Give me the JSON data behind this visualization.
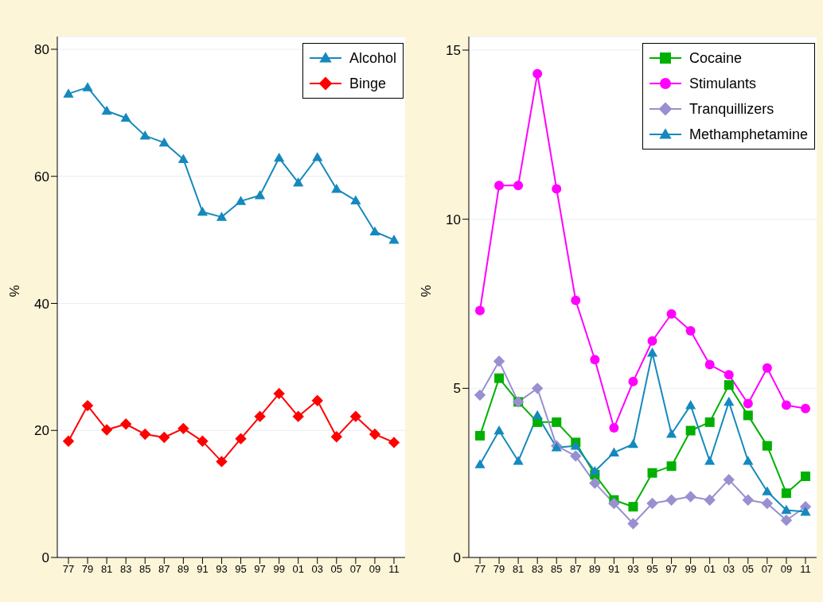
{
  "chart_data": [
    {
      "type": "line",
      "ylabel": "%",
      "categories": [
        "77",
        "79",
        "81",
        "83",
        "85",
        "87",
        "89",
        "91",
        "93",
        "95",
        "97",
        "99",
        "01",
        "03",
        "05",
        "07",
        "09",
        "11"
      ],
      "ylim": [
        0,
        82
      ],
      "yticks": [
        0,
        20,
        40,
        60,
        80
      ],
      "grid": "y",
      "legend": "top right",
      "series": [
        {
          "name": "Alcohol",
          "color": "#1589bd",
          "marker": "triangle",
          "values": [
            73,
            74,
            70.3,
            69.2,
            66.4,
            65.3,
            62.7,
            54.4,
            53.6,
            56.1,
            57,
            62.9,
            59,
            63,
            58,
            56.2,
            51.3,
            50
          ]
        },
        {
          "name": "Binge",
          "color": "#ff0000",
          "marker": "diamond",
          "values": [
            18.3,
            23.9,
            20.1,
            21,
            19.4,
            18.9,
            20.3,
            18.3,
            15.1,
            18.7,
            22.2,
            25.8,
            22.2,
            24.7,
            19,
            22.2,
            19.4,
            18.1
          ]
        }
      ]
    },
    {
      "type": "line",
      "ylabel": "%",
      "categories": [
        "77",
        "79",
        "81",
        "83",
        "85",
        "87",
        "89",
        "91",
        "93",
        "95",
        "97",
        "99",
        "01",
        "03",
        "05",
        "07",
        "09",
        "11"
      ],
      "ylim": [
        0,
        15.4
      ],
      "yticks": [
        0,
        5,
        10,
        15
      ],
      "grid": "y",
      "legend": "top right",
      "series": [
        {
          "name": "Cocaine",
          "color": "#00b000",
          "marker": "square",
          "values": [
            3.6,
            5.3,
            4.6,
            4,
            4,
            3.4,
            2.45,
            1.7,
            1.5,
            2.5,
            2.7,
            3.75,
            4,
            5.1,
            4.2,
            3.3,
            1.9,
            2.4
          ]
        },
        {
          "name": "Stimulants",
          "color": "#ff00ff",
          "marker": "circle",
          "values": [
            7.3,
            11,
            11,
            14.3,
            10.9,
            7.6,
            5.85,
            3.83,
            5.2,
            6.4,
            7.2,
            6.7,
            5.7,
            5.4,
            4.55,
            5.6,
            4.5,
            4.4
          ]
        },
        {
          "name": "Tranquillizers",
          "color": "#9890d0",
          "marker": "diamond",
          "values": [
            4.8,
            5.8,
            4.6,
            5,
            3.3,
            3,
            2.2,
            1.6,
            1,
            1.6,
            1.7,
            1.8,
            1.7,
            2.3,
            1.7,
            1.6,
            1.1,
            1.5
          ]
        },
        {
          "name": "Methamphetamine",
          "color": "#1589bd",
          "marker": "triangle",
          "values": [
            2.75,
            3.75,
            2.85,
            4.2,
            3.25,
            3.3,
            2.55,
            3.1,
            3.35,
            6.05,
            3.65,
            4.5,
            2.85,
            4.6,
            2.85,
            1.95,
            1.4,
            1.35
          ]
        }
      ]
    }
  ]
}
